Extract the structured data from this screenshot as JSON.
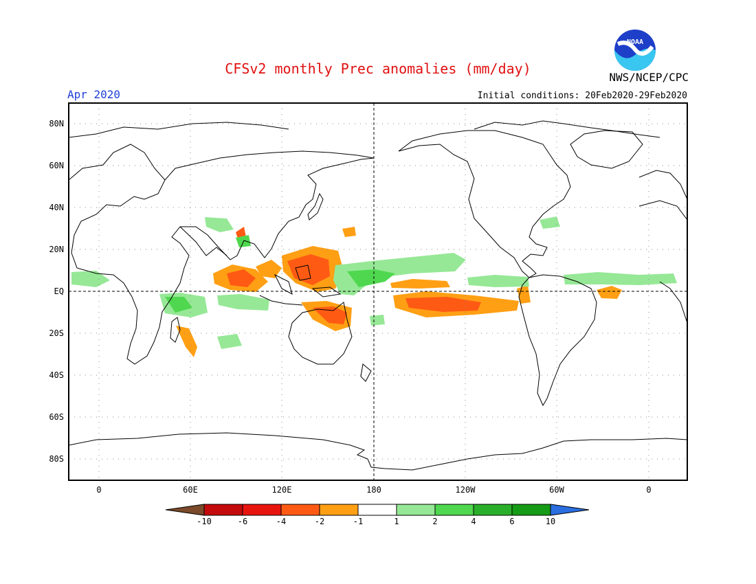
{
  "header": {
    "title": "CFSv2 monthly Prec anomalies (mm/day)",
    "month": "Apr 2020",
    "initial_conditions": "Initial conditions: 20Feb2020-29Feb2020",
    "agency": "NWS/NCEP/CPC",
    "logo_text": "NOAA"
  },
  "map": {
    "lat_labels": [
      "80N",
      "60N",
      "40N",
      "20N",
      "EQ",
      "20S",
      "40S",
      "60S",
      "80S"
    ],
    "lon_labels": [
      "0",
      "60E",
      "120E",
      "180",
      "120W",
      "60W",
      "0"
    ]
  },
  "colorbar": {
    "tick_labels": [
      "-10",
      "-6",
      "-4",
      "-2",
      "-1",
      "1",
      "2",
      "4",
      "6",
      "10"
    ],
    "colors": [
      "#7a4a2a",
      "#c40a0a",
      "#e8150f",
      "#ff5a14",
      "#ff9f14",
      "#ffffff",
      "#96e896",
      "#4fd84f",
      "#2aaf2a",
      "#169b16",
      "#2a6ee0"
    ]
  }
}
